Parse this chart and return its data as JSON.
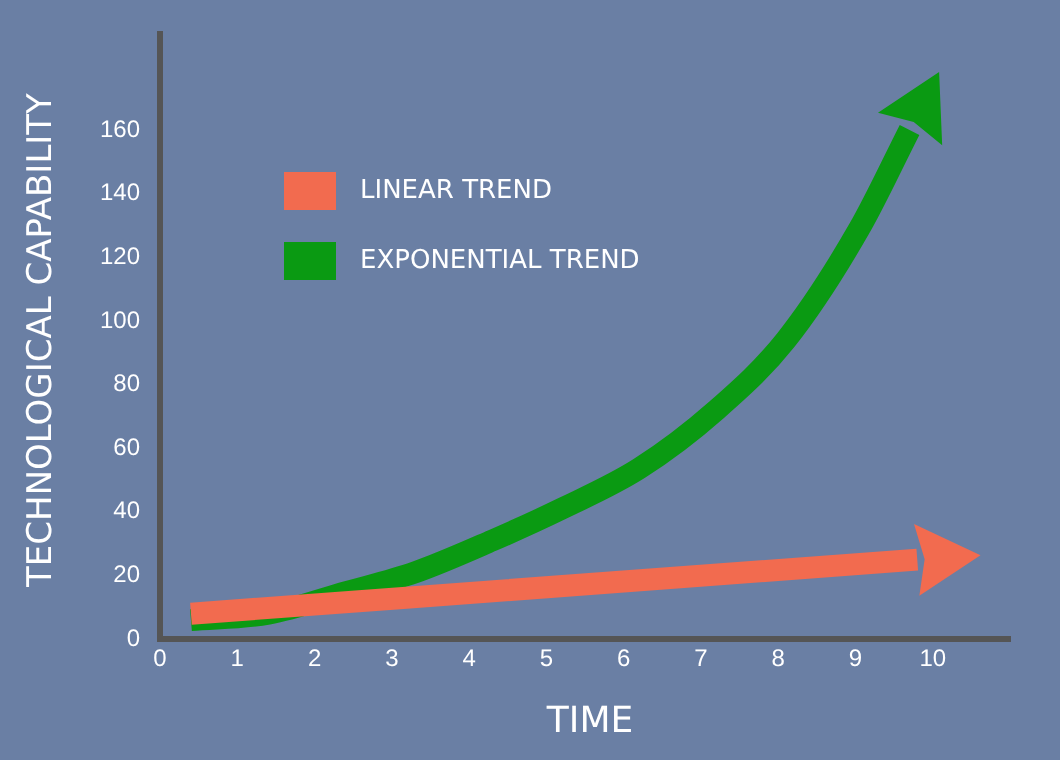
{
  "chart_data": {
    "type": "line",
    "xlabel": "TIME",
    "ylabel": "TECHNOLOGICAL CAPABILITY",
    "xlim": [
      0,
      11
    ],
    "xticks": [
      0,
      1,
      2,
      3,
      4,
      5,
      6,
      7,
      8,
      9,
      10
    ],
    "ylim": [
      0,
      190
    ],
    "yticks": [
      0,
      20,
      40,
      60,
      80,
      100,
      120,
      140,
      160
    ],
    "grid": false,
    "legend": "top left",
    "marker": "none",
    "series": [
      {
        "name": "LINEAR TREND",
        "color": "#f26b4f",
        "x": [
          0.4,
          9.8
        ],
        "values": [
          8,
          25
        ]
      },
      {
        "name": "EXPONENTIAL TREND",
        "color": "#0a9a12",
        "x": [
          0.4,
          1.4,
          2.4,
          3.3,
          4.3,
          5.2,
          6.2,
          7.2,
          8.1,
          9.05,
          9.7
        ],
        "values": [
          6,
          8,
          14.7,
          21,
          31,
          41,
          53.6,
          72,
          94,
          129,
          160
        ]
      }
    ]
  }
}
